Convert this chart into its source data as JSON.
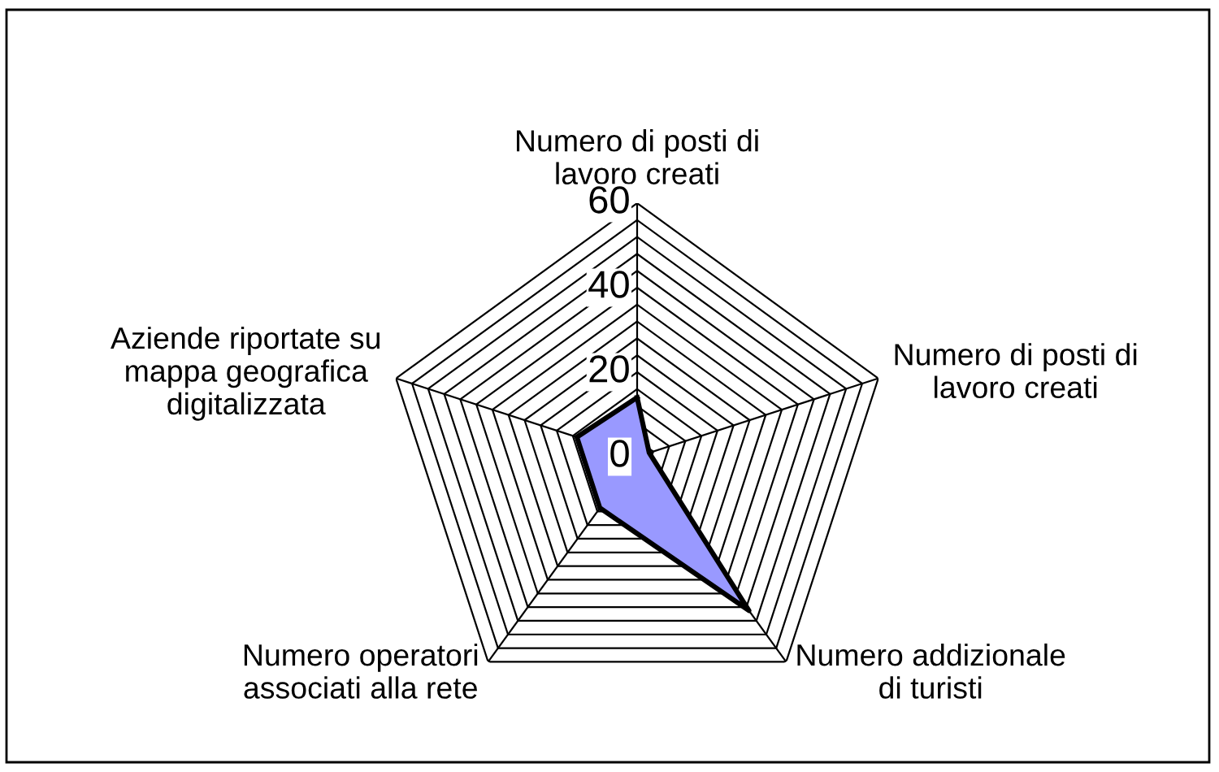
{
  "chart_data": {
    "type": "radar",
    "categories": [
      "Numero di posti di\nlavoro creati",
      "Numero di posti di\nlavoro creati",
      "Numero addizionale\ndi turisti",
      "Numero operatori\nassociati alla rete",
      "Aziende riportate su\nmappa geografica\ndigitalizzata"
    ],
    "series": [
      {
        "color": "#9999ff",
        "values": [
          14,
          3,
          45,
          15,
          15
        ]
      }
    ],
    "ylim": [
      0,
      60
    ],
    "yticks": [
      0,
      20,
      40,
      60
    ],
    "grid": true,
    "legend": false
  }
}
